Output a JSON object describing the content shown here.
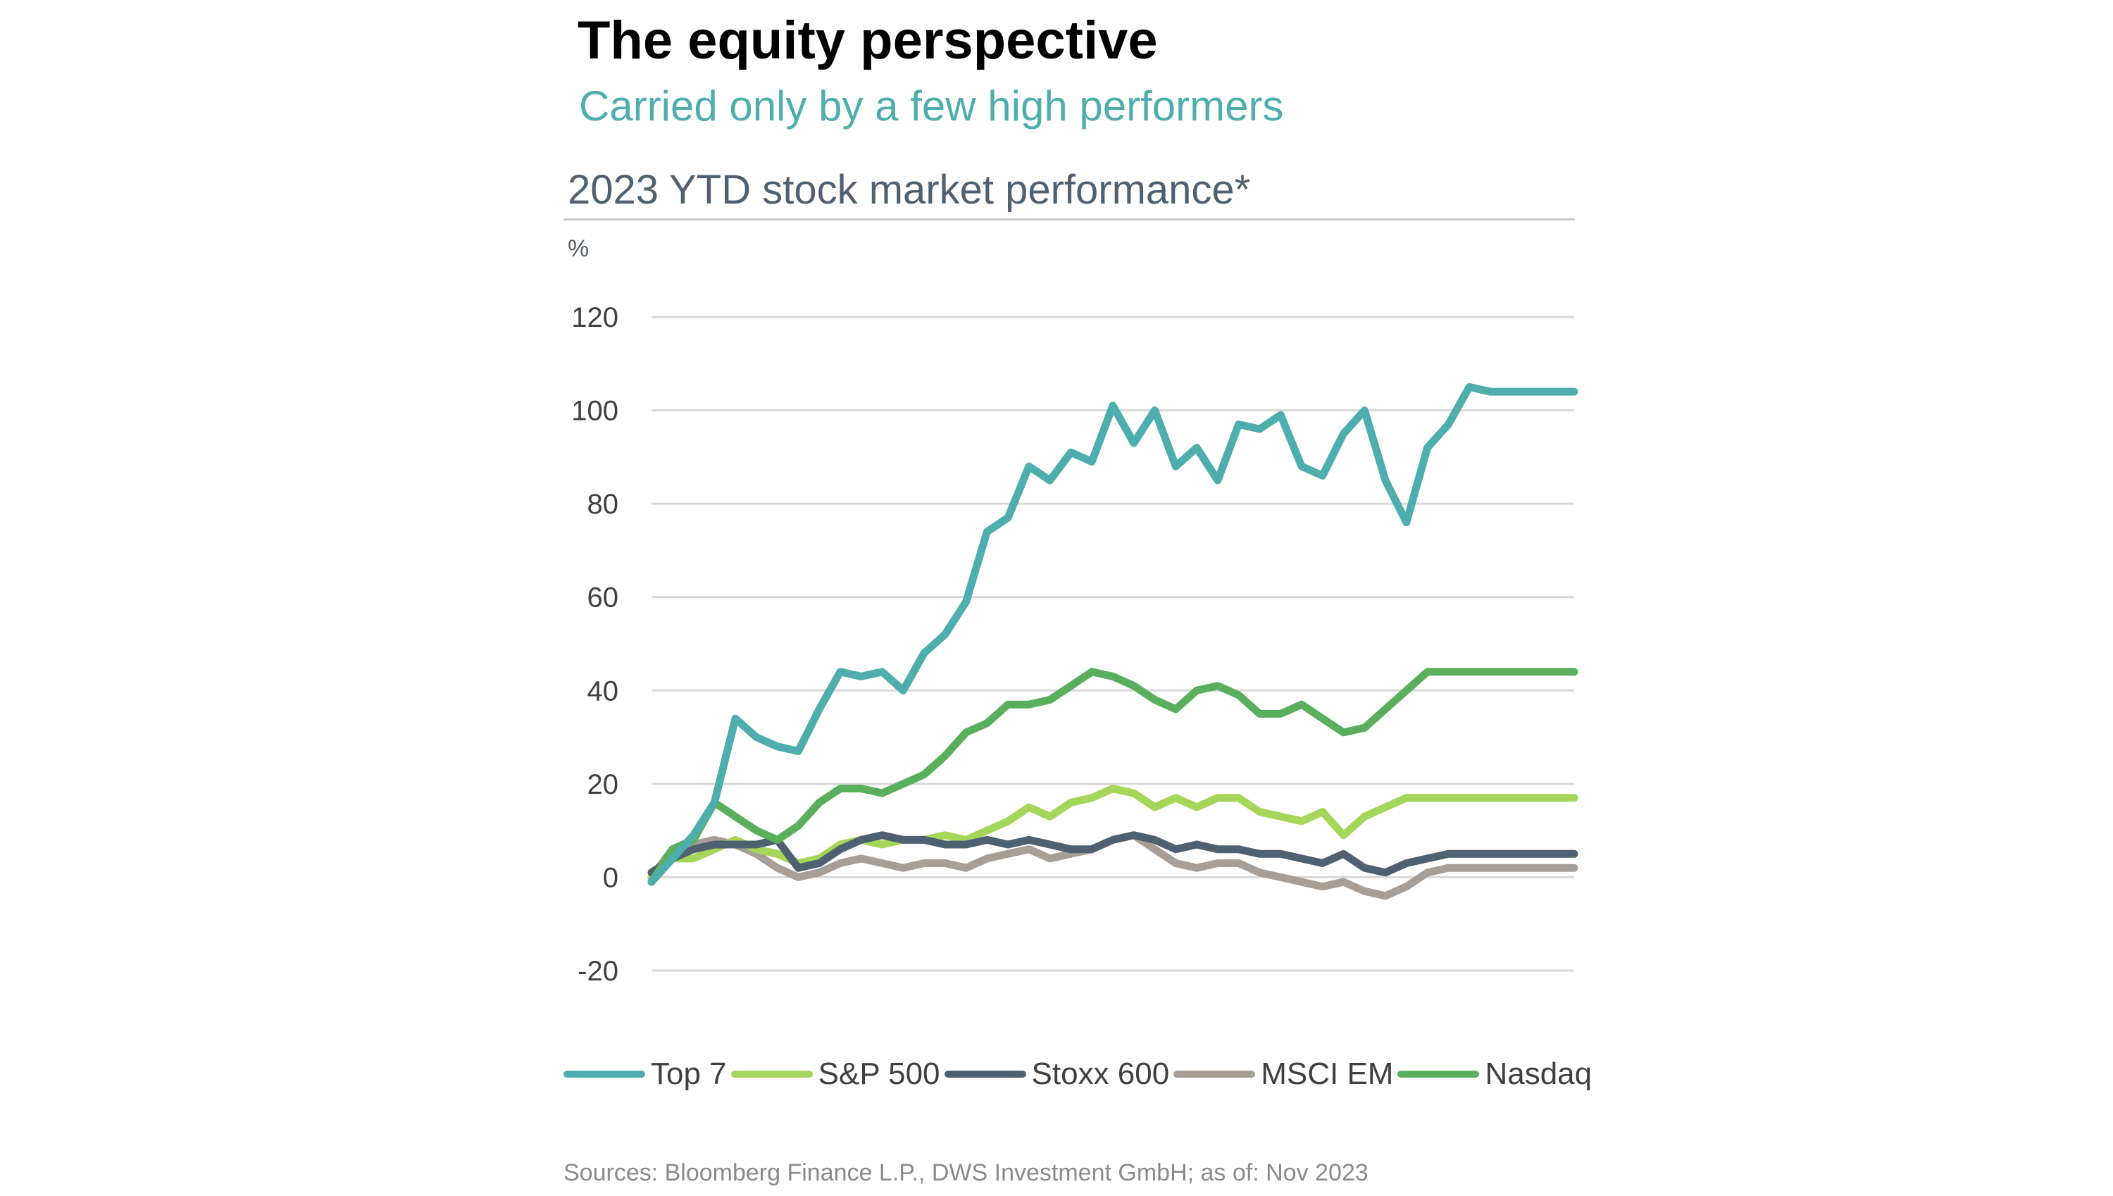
{
  "header": {
    "title": "The equity perspective",
    "subtitle": "Carried only by a few high performers"
  },
  "source": "Sources: Bloomberg Finance L.P., DWS Investment GmbH; as of: Nov 2023",
  "colors": {
    "top7": "#4eadad",
    "sp500": "#a5d65a",
    "stoxx600": "#4f6170",
    "msci_em": "#a79e95",
    "nasdaq": "#5aaf5c",
    "grid": "#d9d9d9",
    "axis_text": "#404040"
  },
  "chart_data": {
    "type": "line",
    "title": "2023 YTD stock market performance*",
    "ylabel": "%",
    "xlabel": "",
    "ylim": [
      -20,
      120
    ],
    "yticks": [
      120,
      100,
      80,
      60,
      40,
      20,
      0,
      -20
    ],
    "ytick_labels": [
      "120",
      "100",
      "80",
      "60",
      "40",
      "20",
      "0",
      "-20"
    ],
    "grid": true,
    "legend_position": "bottom",
    "x_description": "trading periods from Jan 2023 to Nov 2023 (no axis labels shown)",
    "x": [
      0,
      1,
      2,
      3,
      4,
      5,
      6,
      7,
      8,
      9,
      10,
      11,
      12,
      13,
      14,
      15,
      16,
      17,
      18,
      19,
      20,
      21,
      22,
      23,
      24,
      25,
      26,
      27,
      28,
      29,
      30,
      31,
      32,
      33,
      34,
      35,
      36,
      37,
      38,
      39,
      40,
      41,
      42,
      43,
      44
    ],
    "series": [
      {
        "name": "Top 7",
        "color": "#4eadad",
        "values": [
          -1,
          4,
          9,
          16,
          34,
          30,
          28,
          27,
          36,
          44,
          43,
          44,
          40,
          48,
          52,
          59,
          74,
          77,
          88,
          85,
          91,
          89,
          101,
          93,
          100,
          88,
          92,
          85,
          97,
          96,
          99,
          88,
          86,
          95,
          100,
          85,
          76,
          92,
          97,
          105,
          104,
          104,
          104,
          104,
          104
        ]
      },
      {
        "name": "S&P 500",
        "color": "#a5d65a",
        "values": [
          0,
          4,
          4,
          6,
          8,
          6,
          5,
          3,
          4,
          7,
          8,
          7,
          8,
          8,
          9,
          8,
          10,
          12,
          15,
          13,
          16,
          17,
          19,
          18,
          15,
          17,
          15,
          17,
          17,
          14,
          13,
          12,
          14,
          9,
          13,
          15,
          17,
          17,
          17,
          17,
          17,
          17,
          17,
          17,
          17
        ]
      },
      {
        "name": "Stoxx 600",
        "color": "#4f6170",
        "values": [
          1,
          4,
          6,
          7,
          7,
          7,
          8,
          2,
          3,
          6,
          8,
          9,
          8,
          8,
          7,
          7,
          8,
          7,
          8,
          7,
          6,
          6,
          8,
          9,
          8,
          6,
          7,
          6,
          6,
          5,
          5,
          4,
          3,
          5,
          2,
          1,
          3,
          4,
          5,
          5,
          5,
          5,
          5,
          5,
          5
        ]
      },
      {
        "name": "MSCI EM",
        "color": "#a79e95",
        "values": [
          0,
          6,
          7,
          8,
          7,
          5,
          2,
          0,
          1,
          3,
          4,
          3,
          2,
          3,
          3,
          2,
          4,
          5,
          6,
          4,
          5,
          6,
          8,
          9,
          6,
          3,
          2,
          3,
          3,
          1,
          0,
          -1,
          -2,
          -1,
          -3,
          -4,
          -2,
          1,
          2,
          2,
          2,
          2,
          2,
          2,
          2
        ]
      },
      {
        "name": "Nasdaq",
        "color": "#5aaf5c",
        "values": [
          -1,
          6,
          8,
          16,
          13,
          10,
          8,
          11,
          16,
          19,
          19,
          18,
          20,
          22,
          26,
          31,
          33,
          37,
          37,
          38,
          41,
          44,
          43,
          41,
          38,
          36,
          40,
          41,
          39,
          35,
          35,
          37,
          34,
          31,
          32,
          36,
          40,
          44,
          44,
          44,
          44,
          44,
          44,
          44,
          44
        ]
      }
    ]
  },
  "legend": [
    "Top 7",
    "S&P 500",
    "Stoxx 600",
    "MSCI EM",
    "Nasdaq"
  ]
}
